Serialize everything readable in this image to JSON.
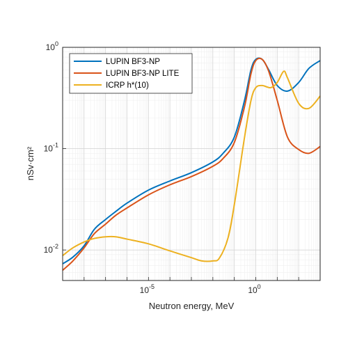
{
  "chart_data": {
    "type": "line",
    "xlabel": "Neutron energy, MeV",
    "ylabel": "nSv·cm²",
    "xscale": "log",
    "yscale": "log",
    "xlim": [
      1e-09,
      1000
    ],
    "ylim": [
      0.005,
      1.0
    ],
    "grid": true,
    "minor_grid": true,
    "legend_position": "top-left",
    "x_ticks": [
      {
        "value": 1e-05,
        "base": "10",
        "exp": "-5"
      },
      {
        "value": 1,
        "base": "10",
        "exp": "0"
      }
    ],
    "y_ticks": [
      {
        "value": 0.01,
        "base": "10",
        "exp": "-2"
      },
      {
        "value": 0.1,
        "base": "10",
        "exp": "-1"
      },
      {
        "value": 1,
        "base": "10",
        "exp": "0"
      }
    ],
    "series": [
      {
        "name": "LUPIN BF3-NP",
        "color": "#0072BD",
        "points": [
          [
            1e-09,
            0.0073
          ],
          [
            3e-09,
            0.0085
          ],
          [
            1e-08,
            0.011
          ],
          [
            3e-08,
            0.016
          ],
          [
            1e-07,
            0.02
          ],
          [
            3e-07,
            0.024
          ],
          [
            1e-06,
            0.029
          ],
          [
            1e-05,
            0.039
          ],
          [
            0.0001,
            0.048
          ],
          [
            0.001,
            0.058
          ],
          [
            0.01,
            0.074
          ],
          [
            0.03,
            0.09
          ],
          [
            0.1,
            0.13
          ],
          [
            0.3,
            0.3
          ],
          [
            0.6,
            0.6
          ],
          [
            1,
            0.76
          ],
          [
            2,
            0.76
          ],
          [
            4,
            0.6
          ],
          [
            10,
            0.42
          ],
          [
            30,
            0.37
          ],
          [
            100,
            0.45
          ],
          [
            300,
            0.62
          ],
          [
            1000,
            0.74
          ]
        ]
      },
      {
        "name": "LUPIN BF3-NP LITE",
        "color": "#D95319",
        "points": [
          [
            1e-09,
            0.0063
          ],
          [
            3e-09,
            0.0078
          ],
          [
            1e-08,
            0.0105
          ],
          [
            3e-08,
            0.0145
          ],
          [
            1e-07,
            0.018
          ],
          [
            3e-07,
            0.022
          ],
          [
            1e-06,
            0.026
          ],
          [
            1e-05,
            0.035
          ],
          [
            0.0001,
            0.044
          ],
          [
            0.001,
            0.053
          ],
          [
            0.01,
            0.067
          ],
          [
            0.03,
            0.08
          ],
          [
            0.1,
            0.115
          ],
          [
            0.3,
            0.26
          ],
          [
            0.6,
            0.55
          ],
          [
            1,
            0.74
          ],
          [
            2,
            0.76
          ],
          [
            4,
            0.58
          ],
          [
            10,
            0.3
          ],
          [
            30,
            0.13
          ],
          [
            100,
            0.098
          ],
          [
            300,
            0.09
          ],
          [
            1000,
            0.105
          ]
        ]
      },
      {
        "name": "ICRP h*(10)",
        "color": "#EDB120",
        "points": [
          [
            1e-09,
            0.0088
          ],
          [
            3e-09,
            0.0105
          ],
          [
            1e-08,
            0.012
          ],
          [
            3e-08,
            0.013
          ],
          [
            1e-07,
            0.0135
          ],
          [
            3e-07,
            0.0135
          ],
          [
            1e-06,
            0.0128
          ],
          [
            1e-05,
            0.0115
          ],
          [
            0.0001,
            0.0098
          ],
          [
            0.001,
            0.0084
          ],
          [
            0.003,
            0.0078
          ],
          [
            0.01,
            0.0078
          ],
          [
            0.02,
            0.0083
          ],
          [
            0.05,
            0.013
          ],
          [
            0.1,
            0.028
          ],
          [
            0.3,
            0.13
          ],
          [
            0.6,
            0.3
          ],
          [
            1,
            0.4
          ],
          [
            2,
            0.42
          ],
          [
            5,
            0.4
          ],
          [
            10,
            0.45
          ],
          [
            20,
            0.58
          ],
          [
            30,
            0.5
          ],
          [
            100,
            0.28
          ],
          [
            300,
            0.25
          ],
          [
            1000,
            0.33
          ]
        ]
      }
    ]
  }
}
